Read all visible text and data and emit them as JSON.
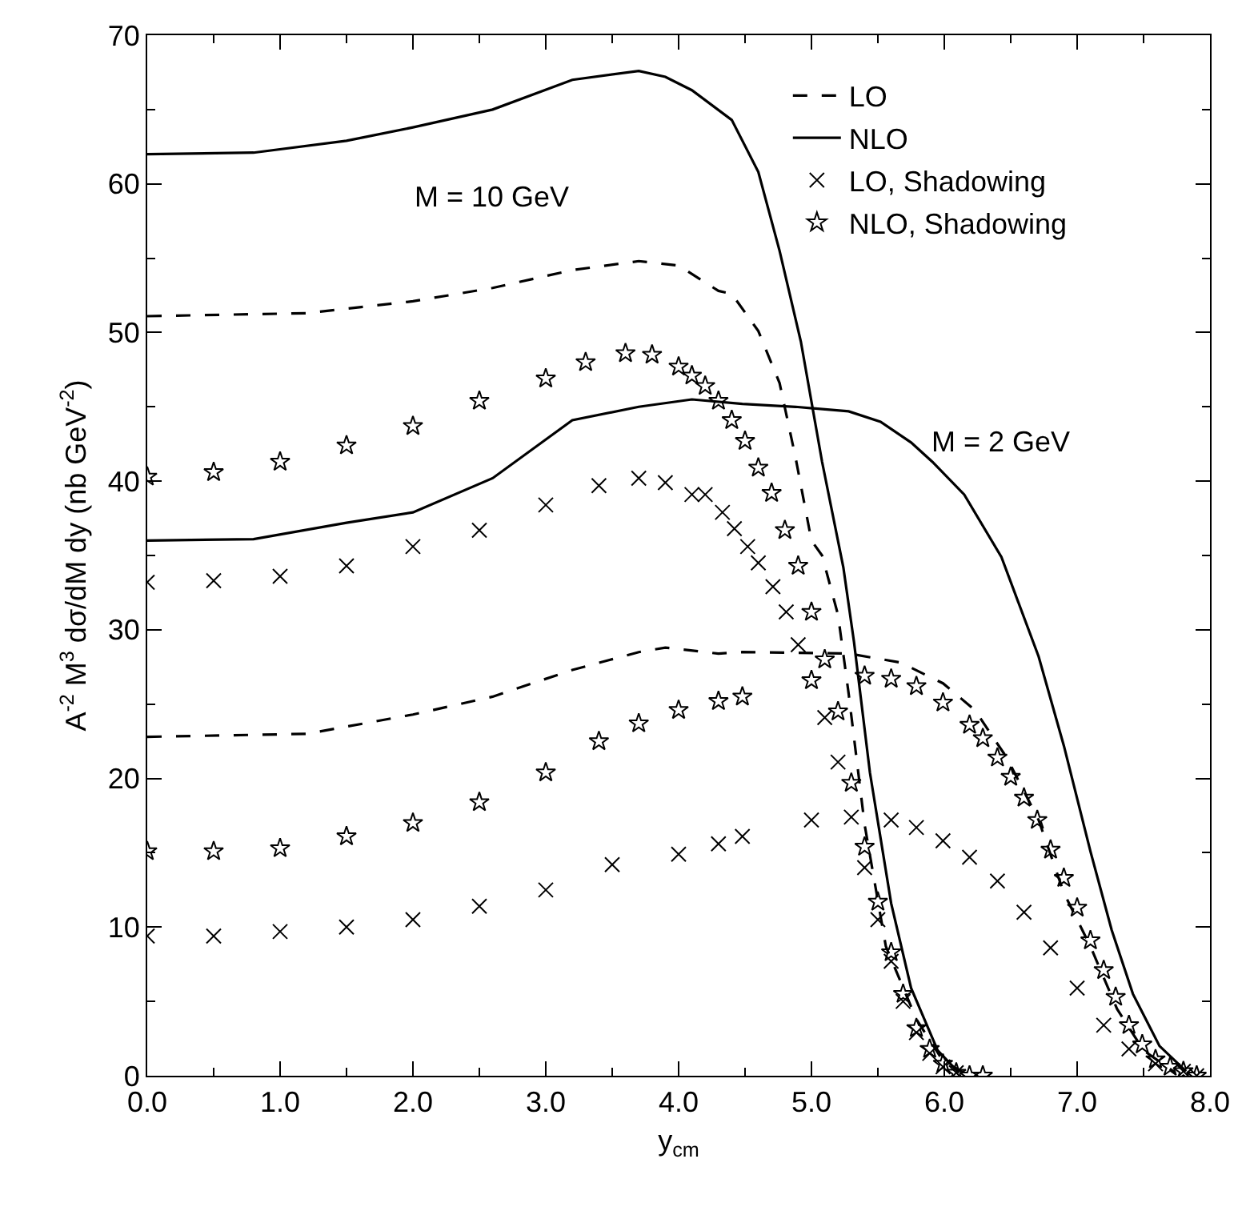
{
  "chart_data": {
    "type": "line",
    "xlabel": "y$_{cm}$",
    "ylabel": "A$^{-2}$ M$^{3}$ dσ/dM dy (nb GeV$^{-2}$)",
    "xlim": [
      0,
      8
    ],
    "ylim": [
      0,
      70
    ],
    "xticks": [
      {
        "value": 0,
        "label": "0.0"
      },
      {
        "value": 1,
        "label": "1.0"
      },
      {
        "value": 2,
        "label": "2.0"
      },
      {
        "value": 3,
        "label": "3.0"
      },
      {
        "value": 4,
        "label": "4.0"
      },
      {
        "value": 5,
        "label": "5.0"
      },
      {
        "value": 6,
        "label": "6.0"
      },
      {
        "value": 7,
        "label": "7.0"
      },
      {
        "value": 8,
        "label": "8.0"
      }
    ],
    "yticks": [
      0,
      10,
      20,
      30,
      40,
      50,
      60,
      70
    ],
    "legend": "top right",
    "annotations": [
      "M = 10 GeV",
      "M = 2 GeV"
    ],
    "series": [
      {
        "name": "LO",
        "line_style": "dashed",
        "marker": "none",
        "color": "#000000",
        "x": [
          0,
          1.2,
          2,
          2.6,
          3.2,
          3.7,
          4,
          4.3,
          4.4,
          4.6,
          4.76,
          4.88,
          5,
          5.08,
          5.2,
          5.28,
          5.4,
          5.56,
          5.79,
          5.99,
          6.15
        ],
        "values": [
          51.1,
          51.3,
          52.1,
          53,
          54.2,
          54.8,
          54.5,
          52.8,
          52.6,
          50.1,
          46.6,
          41.6,
          36,
          35,
          31,
          25.7,
          16.9,
          8.7,
          3.8,
          1,
          0.2
        ]
      },
      {
        "name": "NLO",
        "line_style": "solid",
        "marker": "none",
        "color": "#000000",
        "x": [
          0,
          0.8,
          1.5,
          2,
          2.6,
          3.2,
          3.7,
          3.9,
          4.1,
          4.4,
          4.6,
          4.76,
          4.92,
          5.08,
          5.24,
          5.32,
          5.44,
          5.6,
          5.75,
          5.95,
          6.11
        ],
        "values": [
          62,
          62.1,
          62.9,
          63.8,
          65,
          67,
          67.6,
          67.2,
          66.3,
          64.3,
          60.8,
          55.5,
          49.4,
          41.3,
          34.2,
          29.2,
          20.4,
          11.6,
          5.9,
          1.7,
          0.2
        ]
      },
      {
        "name": "LO, Shadowing",
        "type": "scatter",
        "marker": "cross",
        "color": "#000000",
        "x": [
          0,
          0.5,
          1,
          1.5,
          2,
          2.5,
          3,
          3.4,
          3.7,
          3.9,
          4.1,
          4.2,
          4.33,
          4.42,
          4.52,
          4.6,
          4.71,
          4.81,
          4.9,
          5.1,
          5.2,
          5.4,
          5.5,
          5.6,
          5.69,
          5.79,
          5.89,
          5.99,
          6.09
        ],
        "values": [
          33.2,
          33.3,
          33.6,
          34.3,
          35.6,
          36.7,
          38.4,
          39.7,
          40.2,
          39.9,
          39.1,
          39.1,
          37.9,
          36.8,
          35.6,
          34.5,
          32.9,
          31.2,
          29,
          24.1,
          21.1,
          14,
          10.5,
          7.7,
          5,
          2.9,
          1.5,
          0.6,
          0.2
        ]
      },
      {
        "name": "NLO, Shadowing",
        "type": "scatter",
        "marker": "star",
        "color": "#000000",
        "x": [
          0,
          0.5,
          1,
          1.5,
          2,
          2.5,
          3,
          3.3,
          3.6,
          3.8,
          4,
          4.1,
          4.2,
          4.3,
          4.4,
          4.5,
          4.6,
          4.7,
          4.8,
          4.9,
          5,
          5.1,
          5.2,
          5.3,
          5.4,
          5.5,
          5.6,
          5.69,
          5.79,
          5.89,
          5.99,
          6.09,
          6.19,
          6.29
        ],
        "values": [
          40.3,
          40.6,
          41.3,
          42.4,
          43.7,
          45.4,
          46.9,
          48,
          48.6,
          48.5,
          47.7,
          47.1,
          46.4,
          45.4,
          44.1,
          42.7,
          40.9,
          39.2,
          36.7,
          34.3,
          31.2,
          28,
          24.5,
          19.7,
          15.4,
          11.7,
          8.3,
          5.5,
          3.2,
          1.8,
          0.8,
          0.2,
          0,
          0
        ]
      },
      {
        "line_style": "dashed",
        "marker": "none",
        "color": "#000000",
        "x": [
          0,
          1.2,
          2,
          2.6,
          3.2,
          3.7,
          3.9,
          4.3,
          4.48,
          5.28,
          5.67,
          5.99,
          6.23,
          6.47,
          6.71,
          6.9,
          7.1,
          7.3,
          7.5,
          7.74
        ],
        "values": [
          22.8,
          23,
          24.3,
          25.5,
          27.3,
          28.5,
          28.8,
          28.4,
          28.5,
          28.4,
          27.8,
          26.4,
          24.6,
          21.4,
          17.2,
          12.3,
          8.7,
          4.5,
          1.7,
          0.2
        ]
      },
      {
        "line_style": "solid",
        "marker": "none",
        "color": "#000000",
        "x": [
          0,
          0.8,
          1.5,
          2,
          2.6,
          3.2,
          3.7,
          4.1,
          4.48,
          4.88,
          5.28,
          5.52,
          5.75,
          5.91,
          6.15,
          6.43,
          6.71,
          6.9,
          7.1,
          7.26,
          7.42,
          7.62,
          7.82
        ],
        "values": [
          36,
          36.1,
          37.2,
          37.9,
          40.2,
          44.1,
          45,
          45.5,
          45.2,
          45,
          44.7,
          44,
          42.6,
          41.3,
          39.1,
          34.9,
          28.2,
          22.2,
          15.1,
          9.8,
          5.5,
          2,
          0.3
        ]
      },
      {
        "type": "scatter",
        "marker": "cross",
        "color": "#000000",
        "x": [
          0,
          0.5,
          1,
          1.5,
          2,
          2.5,
          3,
          3.5,
          4,
          4.3,
          4.48,
          5,
          5.3,
          5.6,
          5.79,
          5.99,
          6.19,
          6.4,
          6.6,
          6.8,
          7,
          7.2,
          7.39,
          7.59,
          7.8,
          7.9
        ],
        "values": [
          9.4,
          9.4,
          9.7,
          10,
          10.5,
          11.4,
          12.5,
          14.2,
          14.9,
          15.6,
          16.1,
          17.2,
          17.4,
          17.2,
          16.7,
          15.8,
          14.7,
          13.1,
          11,
          8.6,
          5.9,
          3.4,
          1.8,
          0.8,
          0.3,
          0
        ]
      },
      {
        "type": "scatter",
        "marker": "star",
        "color": "#000000",
        "x": [
          0,
          0.5,
          1,
          1.5,
          2,
          2.5,
          3,
          3.4,
          3.7,
          4,
          4.3,
          4.48,
          5,
          5.4,
          5.6,
          5.79,
          5.99,
          6.19,
          6.29,
          6.4,
          6.5,
          6.6,
          6.7,
          6.8,
          6.9,
          7,
          7.1,
          7.2,
          7.29,
          7.39,
          7.49,
          7.59,
          7.7,
          7.8,
          7.9
        ],
        "values": [
          15.1,
          15.1,
          15.3,
          16.1,
          17,
          18.4,
          20.4,
          22.5,
          23.7,
          24.6,
          25.2,
          25.5,
          26.6,
          26.9,
          26.7,
          26.2,
          25.1,
          23.6,
          22.7,
          21.4,
          20.1,
          18.7,
          17.2,
          15.2,
          13.3,
          11.3,
          9.1,
          7.1,
          5.3,
          3.4,
          2.1,
          1.1,
          0.6,
          0.3,
          0
        ]
      }
    ]
  }
}
